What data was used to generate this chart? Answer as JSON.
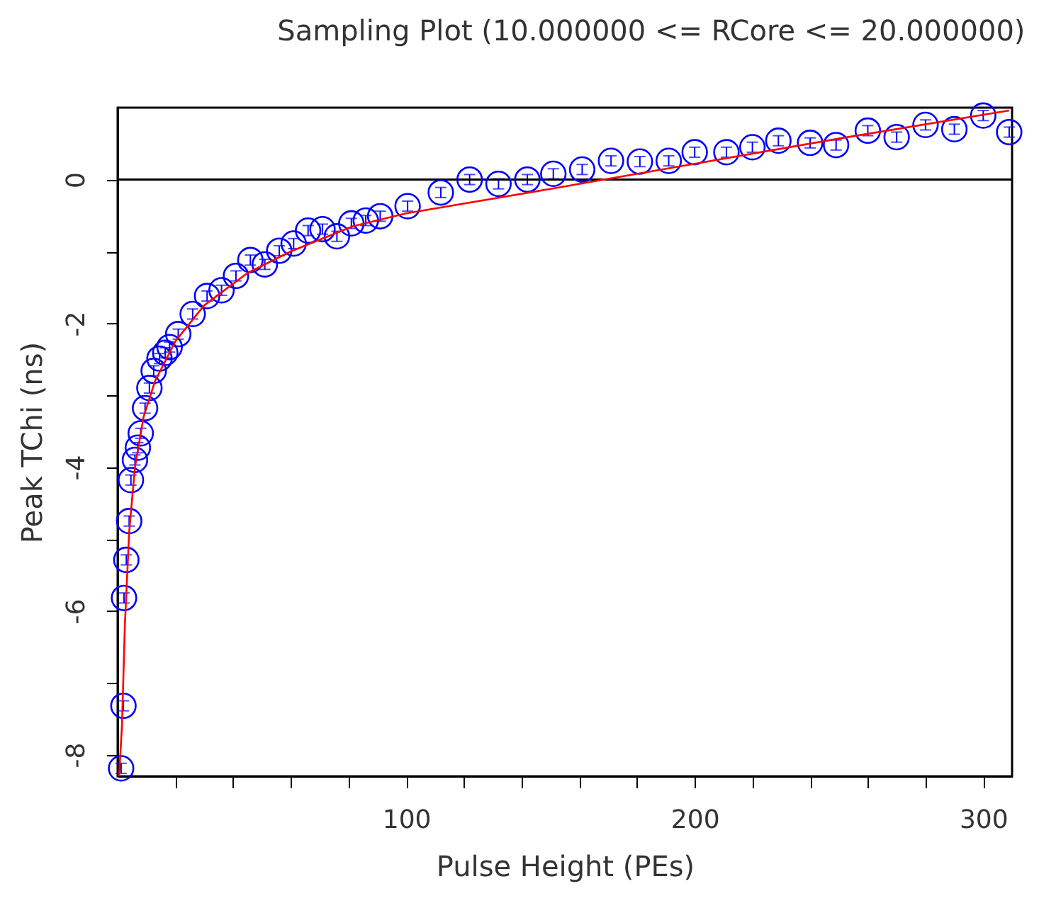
{
  "chart_data": {
    "type": "scatter",
    "title": "Sampling Plot (10.000000 <= RCore <= 20.000000)",
    "xlabel": "Pulse Height (PEs)",
    "ylabel": "Peak TChi (ns)",
    "xlim": [
      0,
      310
    ],
    "ylim": [
      -8.3,
      1
    ],
    "xticks": [
      {
        "value": 20,
        "label": null
      },
      {
        "value": 40,
        "label": null
      },
      {
        "value": 60,
        "label": null
      },
      {
        "value": 80,
        "label": null
      },
      100,
      {
        "value": 120,
        "label": null
      },
      {
        "value": 140,
        "label": null
      },
      {
        "value": 160,
        "label": null
      },
      {
        "value": 180,
        "label": null
      },
      200,
      {
        "value": 220,
        "label": null
      },
      {
        "value": 240,
        "label": null
      },
      {
        "value": 260,
        "label": null
      },
      {
        "value": 280,
        "label": null
      },
      300
    ],
    "yticks": [
      -8,
      {
        "value": -7,
        "label": null
      },
      -6,
      {
        "value": -5,
        "label": null
      },
      -4,
      {
        "value": -3,
        "label": null
      },
      -2,
      {
        "value": -1,
        "label": null
      },
      0
    ],
    "grid": false,
    "ref_lines": [
      {
        "axis": "y",
        "value": 0,
        "color": "#000000"
      }
    ],
    "series": [
      {
        "marker": "circle",
        "color": "#0000ff",
        "x": [
          1.2,
          2,
          2.2,
          3,
          4,
          4.6,
          6,
          7,
          8,
          9.5,
          11,
          12.5,
          14.5,
          16.5,
          18,
          21,
          26,
          31,
          36,
          41,
          46,
          51,
          56,
          61,
          66,
          71,
          76,
          81,
          86,
          91,
          100.5,
          112,
          122,
          132,
          142,
          151,
          161,
          171,
          181,
          191,
          200,
          211,
          220,
          229,
          240,
          249,
          260,
          270,
          280,
          290,
          300,
          309
        ],
        "values": [
          -8.19,
          -7.32,
          -5.82,
          -5.29,
          -4.75,
          -4.18,
          -3.9,
          -3.73,
          -3.53,
          -3.18,
          -2.9,
          -2.66,
          -2.49,
          -2.41,
          -2.33,
          -2.15,
          -1.87,
          -1.62,
          -1.54,
          -1.34,
          -1.12,
          -1.18,
          -0.99,
          -0.89,
          -0.71,
          -0.69,
          -0.79,
          -0.61,
          -0.57,
          -0.51,
          -0.37,
          -0.18,
          0,
          -0.06,
          0,
          0.08,
          0.14,
          0.26,
          0.25,
          0.26,
          0.38,
          0.38,
          0.45,
          0.54,
          0.51,
          0.48,
          0.68,
          0.59,
          0.76,
          0.7,
          0.89,
          0.66
        ],
        "errors": [
          0.07,
          0.07,
          0.07,
          0.07,
          0.07,
          0.07,
          0.07,
          0.07,
          0.07,
          0.07,
          0.07,
          0.07,
          0.07,
          0.07,
          0.07,
          0.07,
          0.07,
          0.07,
          0.07,
          0.07,
          0.07,
          0.07,
          0.07,
          0.07,
          0.07,
          0.07,
          0.07,
          0.07,
          0.07,
          0.07,
          0.07,
          0.07,
          0.07,
          0.07,
          0.07,
          0.07,
          0.07,
          0.07,
          0.07,
          0.07,
          0.07,
          0.07,
          0.07,
          0.07,
          0.07,
          0.07,
          0.07,
          0.07,
          0.07,
          0.07,
          0.07,
          0.07
        ]
      },
      {
        "type": "line",
        "color": "#ff0000",
        "x": [
          0.5,
          1.5,
          2.5,
          4,
          6,
          9,
          13,
          20,
          30,
          45,
          60,
          81.5,
          100,
          150,
          200,
          250,
          309
        ],
        "values": [
          -8.3,
          -7.6,
          -6.2,
          -4.9,
          -4.0,
          -3.3,
          -2.8,
          -2.25,
          -1.75,
          -1.3,
          -1.0,
          -0.65,
          -0.47,
          -0.13,
          0.22,
          0.57,
          0.96
        ]
      }
    ]
  }
}
